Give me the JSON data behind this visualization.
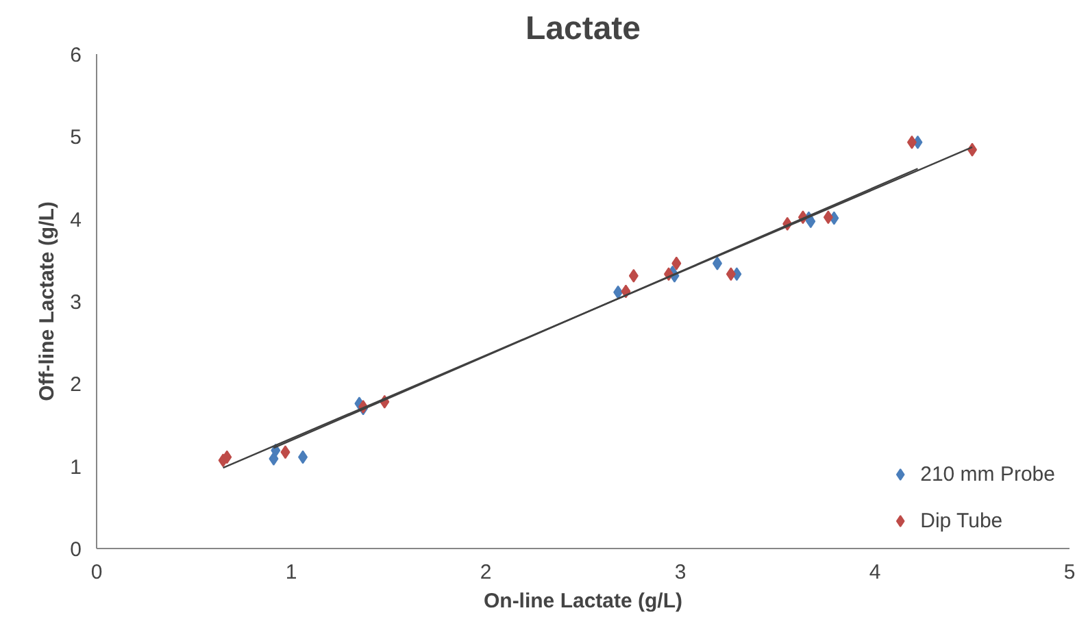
{
  "chart_data": {
    "type": "scatter",
    "title": "Lactate",
    "xlabel": "On-line Lactate (g/L)",
    "ylabel": "Off-line Lactate (g/L)",
    "xlim": [
      0,
      5
    ],
    "ylim": [
      0,
      6
    ],
    "xticks": [
      0,
      1,
      2,
      3,
      4,
      5
    ],
    "yticks": [
      0,
      1,
      2,
      3,
      4,
      5,
      6
    ],
    "grid": false,
    "legend": "bottom right",
    "marker": "diamond",
    "series": [
      {
        "name": "210 mm Probe",
        "color": "#4a7ebb",
        "x": [
          0.91,
          0.92,
          1.06,
          1.35,
          1.37,
          2.68,
          2.97,
          2.96,
          3.19,
          3.29,
          3.67,
          3.66,
          3.79,
          4.22
        ],
        "values": [
          1.09,
          1.19,
          1.11,
          1.76,
          1.7,
          3.11,
          3.31,
          3.35,
          3.46,
          3.33,
          3.97,
          4.01,
          4.01,
          4.93
        ]
      },
      {
        "name": "Dip Tube",
        "color": "#be4b48",
        "x": [
          0.65,
          0.67,
          0.97,
          1.48,
          1.37,
          2.72,
          2.76,
          2.94,
          2.98,
          3.26,
          3.55,
          3.63,
          3.76,
          4.19,
          4.5
        ],
        "values": [
          1.07,
          1.11,
          1.17,
          1.78,
          1.72,
          3.12,
          3.31,
          3.33,
          3.46,
          3.33,
          3.94,
          4.02,
          4.02,
          4.93,
          4.84
        ]
      },
      {
        "type": "line",
        "color": "#404040",
        "marker": "none",
        "x": [
          0.91,
          4.22
        ],
        "values": [
          1.22,
          4.61
        ]
      },
      {
        "type": "line",
        "color": "#404040",
        "marker": "none",
        "x": [
          0.65,
          4.5
        ],
        "values": [
          0.98,
          4.87
        ]
      }
    ]
  }
}
